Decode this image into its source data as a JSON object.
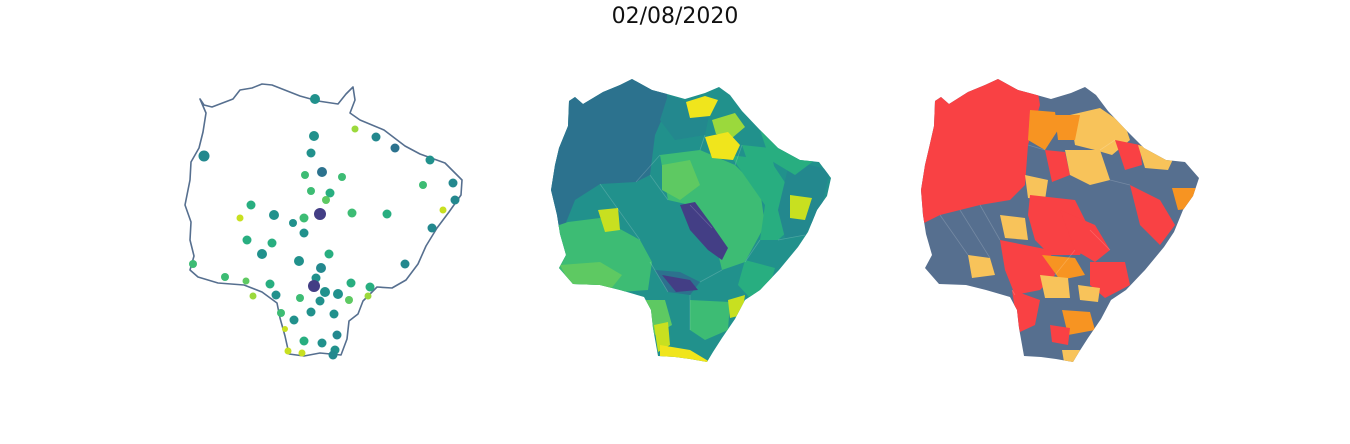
{
  "figure": {
    "title": "02/08/2020"
  },
  "colors": {
    "outline": "#566f8f",
    "viridis": [
      "#433e85",
      "#2c728e",
      "#23888e",
      "#21918c",
      "#28ae80",
      "#3dbc74",
      "#5ec962",
      "#9bd93c",
      "#c8e020",
      "#f0e51c"
    ],
    "category": {
      "low": "#566f8f",
      "moderate": "#f8c35a",
      "high": "#f79422",
      "very_high": "#f94144"
    }
  },
  "panels": [
    {
      "kind": "proportional-symbol-map"
    },
    {
      "kind": "choropleth-map"
    },
    {
      "kind": "categorical-choropleth-map"
    }
  ]
}
